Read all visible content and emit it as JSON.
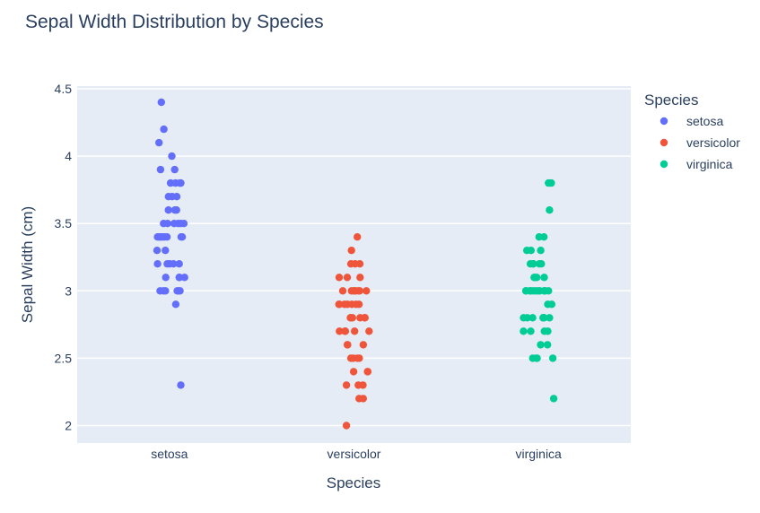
{
  "chart_data": {
    "type": "scatter",
    "title": "Sepal Width Distribution by Species",
    "xlabel": "Species",
    "ylabel": "Sepal Width (cm)",
    "categories": [
      "setosa",
      "versicolor",
      "virginica"
    ],
    "ylim": [
      1.87,
      4.52
    ],
    "yticks": [
      2,
      2.5,
      3,
      3.5,
      4,
      4.5
    ],
    "ytick_labels": [
      "2",
      "2.5",
      "3",
      "3.5",
      "4",
      "4.5"
    ],
    "grid": true,
    "legend": {
      "title": "Species",
      "position": "top-right"
    },
    "series": [
      {
        "name": "setosa",
        "color": "#636efa",
        "values": [
          3.5,
          3.0,
          3.2,
          3.1,
          3.6,
          3.9,
          3.4,
          3.4,
          2.9,
          3.1,
          3.7,
          3.4,
          3.0,
          3.0,
          4.0,
          4.4,
          3.9,
          3.5,
          3.8,
          3.8,
          3.4,
          3.7,
          3.6,
          3.3,
          3.4,
          3.0,
          3.4,
          3.5,
          3.4,
          3.2,
          3.1,
          3.4,
          4.1,
          4.2,
          3.1,
          3.2,
          3.5,
          3.6,
          3.0,
          3.4,
          3.5,
          2.3,
          3.2,
          3.5,
          3.8,
          3.0,
          3.8,
          3.2,
          3.7,
          3.3
        ]
      },
      {
        "name": "versicolor",
        "color": "#ef553b",
        "values": [
          3.2,
          3.2,
          3.1,
          2.3,
          2.8,
          2.8,
          3.3,
          2.4,
          2.9,
          2.7,
          2.0,
          3.0,
          2.2,
          2.9,
          2.9,
          3.1,
          3.0,
          2.7,
          2.2,
          2.5,
          3.2,
          2.8,
          2.5,
          2.8,
          2.9,
          3.0,
          2.8,
          3.0,
          2.9,
          2.6,
          2.4,
          2.4,
          2.7,
          2.7,
          3.0,
          3.4,
          3.1,
          2.3,
          3.0,
          2.5,
          2.6,
          3.0,
          2.6,
          2.3,
          2.7,
          3.0,
          2.9,
          2.9,
          2.5,
          2.8
        ]
      },
      {
        "name": "virginica",
        "color": "#00cc96",
        "values": [
          3.3,
          2.7,
          3.0,
          2.9,
          3.0,
          3.0,
          2.5,
          2.9,
          2.5,
          3.6,
          3.2,
          2.7,
          3.0,
          2.5,
          2.8,
          3.2,
          3.0,
          3.8,
          2.6,
          2.2,
          3.2,
          2.8,
          2.8,
          2.7,
          3.3,
          3.2,
          2.8,
          3.0,
          2.8,
          3.0,
          2.8,
          3.8,
          2.8,
          2.8,
          2.6,
          3.0,
          3.4,
          3.1,
          3.0,
          3.1,
          3.1,
          3.1,
          2.7,
          3.2,
          3.3,
          3.0,
          2.5,
          3.0,
          3.4,
          3.0
        ]
      }
    ]
  }
}
